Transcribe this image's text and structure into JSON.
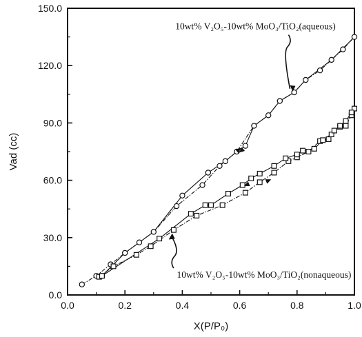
{
  "chart_data": {
    "type": "scatter",
    "xlabel": "X(P/P₀)",
    "ylabel": "Vad (cc)",
    "xlim": [
      0.0,
      1.0
    ],
    "ylim": [
      0.0,
      150.0
    ],
    "x_ticks": [
      "0.0",
      "0.2",
      "0.4",
      "0.6",
      "0.8",
      "1.0"
    ],
    "y_ticks": [
      "0.0",
      "30.0",
      "60.0",
      "90.0",
      "120.0",
      "150.0"
    ],
    "grid": false,
    "legend": "none",
    "series": [
      {
        "name": "10wt% V₂O₅-10wt% MoO₃/TiO₂(aqueous)",
        "marker": "circle",
        "adsorption": {
          "x": [
            0.05,
            0.1,
            0.15,
            0.2,
            0.25,
            0.3,
            0.38,
            0.47,
            0.53,
            0.59,
            0.65,
            0.7,
            0.74,
            0.79,
            0.83,
            0.88,
            0.92,
            0.96,
            1.0
          ],
          "y": [
            5.5,
            10,
            16,
            22,
            27.5,
            33,
            46.5,
            57.5,
            67.5,
            75,
            88.5,
            94,
            101.5,
            106,
            112.5,
            117.5,
            123,
            128.5,
            135
          ]
        },
        "desorption": {
          "x": [
            1.0,
            0.92,
            0.83,
            0.79,
            0.74,
            0.7,
            0.65,
            0.62,
            0.59,
            0.55,
            0.49,
            0.4,
            0.3,
            0.2,
            0.12
          ],
          "y": [
            135,
            123,
            112.5,
            106,
            101.5,
            94,
            88.5,
            78,
            75,
            70,
            64,
            52,
            33,
            22,
            10
          ]
        }
      },
      {
        "name": "10wt% V₂O₅-10wt% MoO₃/TiO₂(nonaqueous)",
        "marker": "square",
        "adsorption": {
          "x": [
            0.11,
            0.16,
            0.24,
            0.29,
            0.37,
            0.45,
            0.54,
            0.62,
            0.67,
            0.72,
            0.77,
            0.8,
            0.84,
            0.88,
            0.92,
            0.95,
            0.97,
            0.99,
            1.0
          ],
          "y": [
            9.5,
            15,
            21,
            25.5,
            34,
            41.5,
            47,
            53.5,
            59,
            64,
            70,
            72,
            75,
            80.5,
            84,
            88,
            88.5,
            94,
            97.5
          ]
        },
        "desorption": {
          "x": [
            1.0,
            0.99,
            0.97,
            0.95,
            0.93,
            0.91,
            0.89,
            0.86,
            0.82,
            0.8,
            0.76,
            0.72,
            0.67,
            0.64,
            0.61,
            0.56,
            0.5,
            0.48,
            0.43,
            0.32,
            0.12
          ],
          "y": [
            97.5,
            95.5,
            91,
            88.5,
            86,
            81.5,
            81,
            76.5,
            75.5,
            73.5,
            71.5,
            67.5,
            63.5,
            61,
            57.5,
            53,
            47,
            47,
            42.5,
            29.5,
            10
          ]
        }
      }
    ],
    "annotations": [
      {
        "text": "10wt% V₂O₅-10wt% MoO₃/TiO₂(aqueous)",
        "points_to": {
          "x": 0.78,
          "y": 105
        },
        "label_x": 0.655,
        "label_y": 139
      },
      {
        "text": "10wt% V₂O₅-10wt% MoO₃/TiO₂(nonaqueous)",
        "points_to": {
          "x": 0.36,
          "y": 33
        },
        "label_x": 0.685,
        "label_y": 9
      }
    ]
  }
}
